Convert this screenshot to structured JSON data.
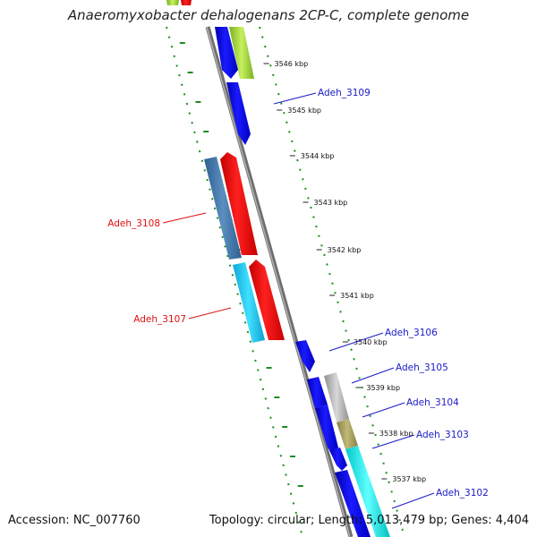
{
  "title": "Anaeromyxobacter dehalogenans 2CP-C, complete genome",
  "footer": {
    "accession": "Accession: NC_007760",
    "summary": "Topology: circular; Length: 5,013,479 bp; Genes: 4,404"
  },
  "ticks": [
    {
      "label": "3546 kbp"
    },
    {
      "label": "3545 kbp"
    },
    {
      "label": "3544 kbp"
    },
    {
      "label": "3543 kbp"
    },
    {
      "label": "3542 kbp"
    },
    {
      "label": "3541 kbp"
    },
    {
      "label": "3540 kbp"
    },
    {
      "label": "3539 kbp"
    },
    {
      "label": "3538 kbp"
    },
    {
      "label": "3537 kbp"
    }
  ],
  "genes": [
    {
      "name": "Adeh_3109",
      "strand": "forward",
      "color": "#1a1ac8"
    },
    {
      "name": "Adeh_3108",
      "strand": "reverse",
      "color": "#e01010"
    },
    {
      "name": "Adeh_3107",
      "strand": "reverse",
      "color": "#e01010"
    },
    {
      "name": "Adeh_3106",
      "strand": "forward",
      "color": "#1a1ac8"
    },
    {
      "name": "Adeh_3105",
      "strand": "forward",
      "color": "#1a1ac8"
    },
    {
      "name": "Adeh_3104",
      "strand": "forward",
      "color": "#1a1ac8"
    },
    {
      "name": "Adeh_3103",
      "strand": "forward",
      "color": "#1a1ac8"
    },
    {
      "name": "Adeh_3102",
      "strand": "forward",
      "color": "#1a1ac8"
    }
  ],
  "colors": {
    "cds_forward": "#0000e6",
    "cds_reverse": "#ff0000",
    "backbone": "#8a8a8a",
    "gc_skew": "#1f8c1f",
    "cog_blue": "#3f7fb0",
    "cog_cyan": "#1ec8f0",
    "cog_grey": "#b8b8b8",
    "cog_olive": "#a8a060",
    "cog_turquoise": "#20e8e8",
    "cog_green": "#a0d040"
  }
}
